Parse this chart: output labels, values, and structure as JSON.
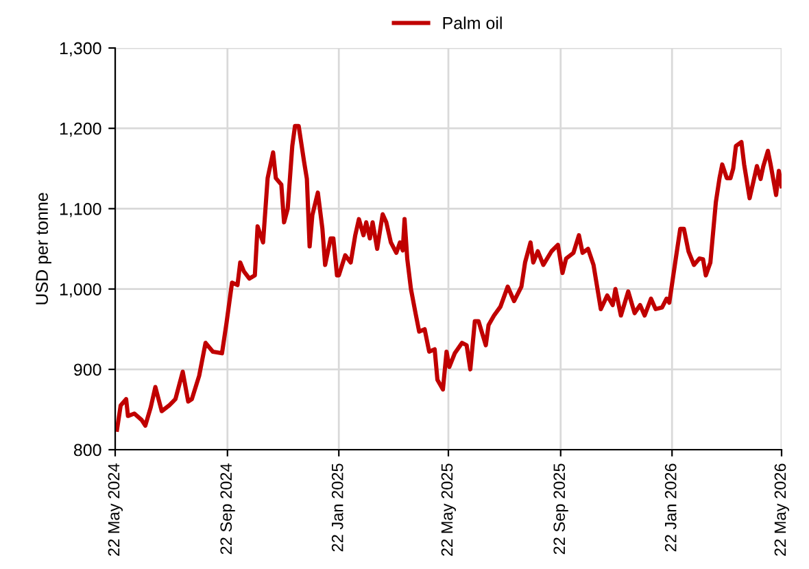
{
  "chart_data": {
    "type": "line",
    "ylabel": "USD per tonne",
    "legend": "top",
    "grid": true,
    "marker": "none",
    "line_style": "solid",
    "xlim": [
      "2024-05-22",
      "2026-05-22"
    ],
    "ylim": [
      800,
      1300
    ],
    "xticks": [
      {
        "value": "2024-05-22",
        "label": "22 May 2024"
      },
      {
        "value": "2024-09-22",
        "label": "22 Sep 2024"
      },
      {
        "value": "2025-01-22",
        "label": "22 Jan 2025"
      },
      {
        "value": "2025-05-22",
        "label": "22 May 2025"
      },
      {
        "value": "2025-09-22",
        "label": "22 Sep 2025"
      },
      {
        "value": "2026-01-22",
        "label": "22 Jan 2026"
      },
      {
        "value": "2026-05-22",
        "label": "22 May 2026"
      }
    ],
    "yticks": [
      {
        "value": 800,
        "label": "800"
      },
      {
        "value": 900,
        "label": "900"
      },
      {
        "value": 1000,
        "label": "1,000"
      },
      {
        "value": 1100,
        "label": "1,100"
      },
      {
        "value": 1200,
        "label": "1,200"
      },
      {
        "value": 1300,
        "label": "1,300"
      }
    ],
    "x": [
      "2024-05-24",
      "2024-05-28",
      "2024-06-03",
      "2024-06-05",
      "2024-06-12",
      "2024-06-20",
      "2024-06-24",
      "2024-06-30",
      "2024-07-05",
      "2024-07-12",
      "2024-07-20",
      "2024-07-27",
      "2024-08-04",
      "2024-08-10",
      "2024-08-14",
      "2024-08-22",
      "2024-08-29",
      "2024-09-06",
      "2024-09-16",
      "2024-09-21",
      "2024-09-27",
      "2024-10-03",
      "2024-10-06",
      "2024-10-10",
      "2024-10-16",
      "2024-10-22",
      "2024-10-25",
      "2024-10-31",
      "2024-11-05",
      "2024-11-11",
      "2024-11-14",
      "2024-11-20",
      "2024-11-23",
      "2024-11-27",
      "2024-12-02",
      "2024-12-05",
      "2024-12-09",
      "2024-12-15",
      "2024-12-18",
      "2024-12-21",
      "2024-12-24",
      "2024-12-30",
      "2025-01-04",
      "2025-01-07",
      "2025-01-13",
      "2025-01-16",
      "2025-01-20",
      "2025-01-22",
      "2025-01-29",
      "2025-02-04",
      "2025-02-09",
      "2025-02-13",
      "2025-02-18",
      "2025-02-21",
      "2025-02-25",
      "2025-02-28",
      "2025-03-05",
      "2025-03-11",
      "2025-03-15",
      "2025-03-20",
      "2025-03-26",
      "2025-03-30",
      "2025-04-02",
      "2025-04-04",
      "2025-04-07",
      "2025-04-11",
      "2025-04-16",
      "2025-04-20",
      "2025-04-26",
      "2025-05-01",
      "2025-05-07",
      "2025-05-10",
      "2025-05-16",
      "2025-05-20",
      "2025-05-23",
      "2025-05-29",
      "2025-06-06",
      "2025-06-11",
      "2025-06-15",
      "2025-06-20",
      "2025-06-24",
      "2025-07-02",
      "2025-07-05",
      "2025-07-11",
      "2025-07-18",
      "2025-07-26",
      "2025-08-02",
      "2025-08-10",
      "2025-08-14",
      "2025-08-20",
      "2025-08-23",
      "2025-08-28",
      "2025-09-03",
      "2025-09-12",
      "2025-09-19",
      "2025-09-24",
      "2025-09-28",
      "2025-10-06",
      "2025-10-12",
      "2025-10-16",
      "2025-10-22",
      "2025-10-28",
      "2025-11-05",
      "2025-11-12",
      "2025-11-18",
      "2025-11-21",
      "2025-11-27",
      "2025-12-05",
      "2025-12-12",
      "2025-12-18",
      "2025-12-23",
      "2025-12-30",
      "2026-01-04",
      "2026-01-11",
      "2026-01-16",
      "2026-01-19",
      "2026-01-26",
      "2026-01-31",
      "2026-02-04",
      "2026-02-09",
      "2026-02-15",
      "2026-02-21",
      "2026-02-25",
      "2026-02-28",
      "2026-03-05",
      "2026-03-11",
      "2026-03-15",
      "2026-03-18",
      "2026-03-23",
      "2026-03-27",
      "2026-03-30",
      "2026-04-02",
      "2026-04-08",
      "2026-04-11",
      "2026-04-17",
      "2026-04-25",
      "2026-04-29",
      "2026-05-02",
      "2026-05-07",
      "2026-05-10",
      "2026-05-16",
      "2026-05-19",
      "2026-05-22"
    ],
    "series": [
      {
        "name": "Palm oil",
        "color": "#c00000",
        "values": [
          825,
          855,
          863,
          842,
          845,
          837,
          830,
          853,
          878,
          848,
          855,
          863,
          897,
          860,
          863,
          892,
          933,
          922,
          920,
          958,
          1008,
          1005,
          1033,
          1022,
          1013,
          1017,
          1078,
          1058,
          1138,
          1170,
          1138,
          1130,
          1083,
          1100,
          1178,
          1203,
          1203,
          1158,
          1137,
          1053,
          1092,
          1120,
          1075,
          1030,
          1063,
          1063,
          1017,
          1017,
          1042,
          1033,
          1067,
          1087,
          1067,
          1083,
          1063,
          1083,
          1050,
          1093,
          1083,
          1058,
          1045,
          1058,
          1048,
          1087,
          1037,
          1000,
          970,
          947,
          950,
          922,
          925,
          887,
          875,
          922,
          903,
          920,
          933,
          930,
          900,
          960,
          960,
          930,
          955,
          967,
          978,
          1003,
          985,
          1003,
          1033,
          1058,
          1033,
          1047,
          1030,
          1047,
          1055,
          1020,
          1038,
          1045,
          1067,
          1045,
          1050,
          1030,
          975,
          992,
          980,
          1000,
          967,
          997,
          970,
          980,
          967,
          988,
          975,
          977,
          988,
          983,
          1037,
          1075,
          1075,
          1047,
          1030,
          1038,
          1037,
          1017,
          1033,
          1108,
          1138,
          1155,
          1138,
          1138,
          1150,
          1178,
          1183,
          1155,
          1113,
          1153,
          1137,
          1153,
          1172,
          1155,
          1117,
          1147,
          1128
        ]
      }
    ]
  }
}
